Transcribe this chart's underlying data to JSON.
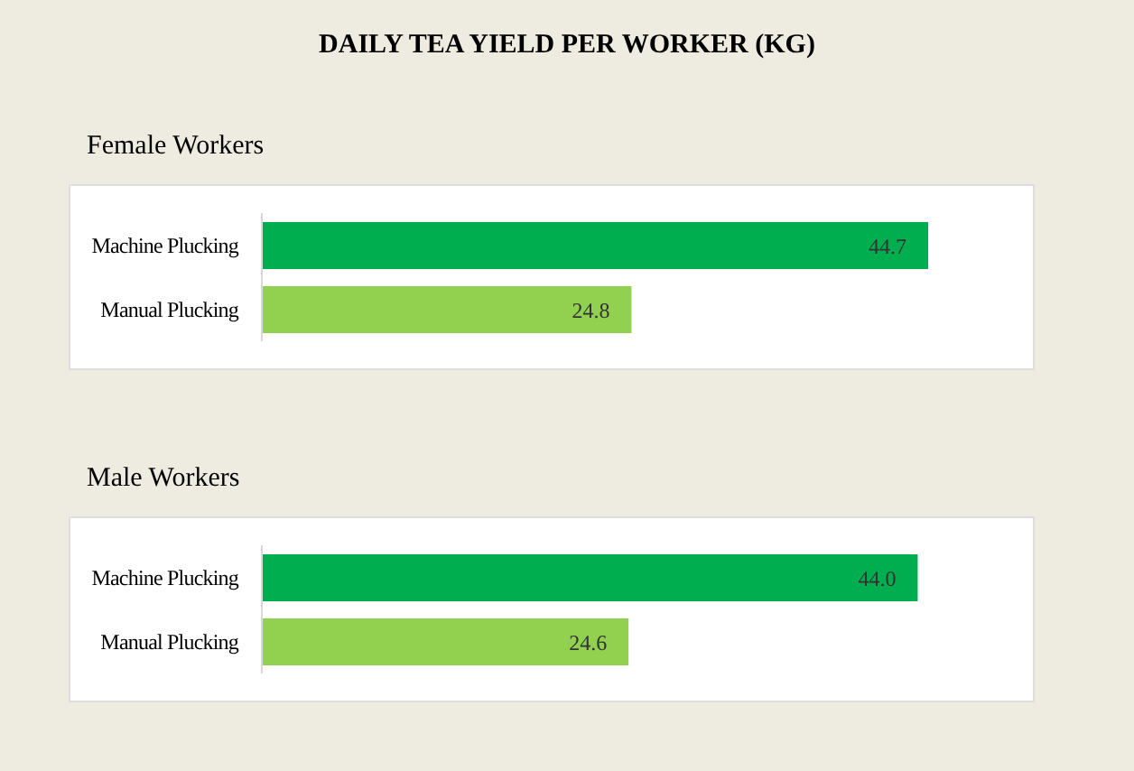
{
  "chart_data": [
    {
      "type": "bar",
      "orientation": "horizontal",
      "title": "DAILY TEA YIELD PER WORKER (KG)",
      "subtitle": "Female Workers",
      "categories": [
        "Machine Plucking",
        "Manual Plucking"
      ],
      "values": [
        44.7,
        24.8
      ],
      "colors": [
        "#00ae4f",
        "#92d050"
      ],
      "data_labels": true,
      "tick_labels": "y"
    },
    {
      "type": "bar",
      "orientation": "horizontal",
      "title": "Male Workers",
      "categories": [
        "Machine Plucking",
        "Manual Plucking"
      ],
      "values": [
        44.0,
        24.6
      ],
      "value_labels": [
        "44.0",
        "24.6"
      ],
      "colors": [
        "#00ae4f",
        "#92d050"
      ],
      "tick_labels": "y"
    }
  ]
}
